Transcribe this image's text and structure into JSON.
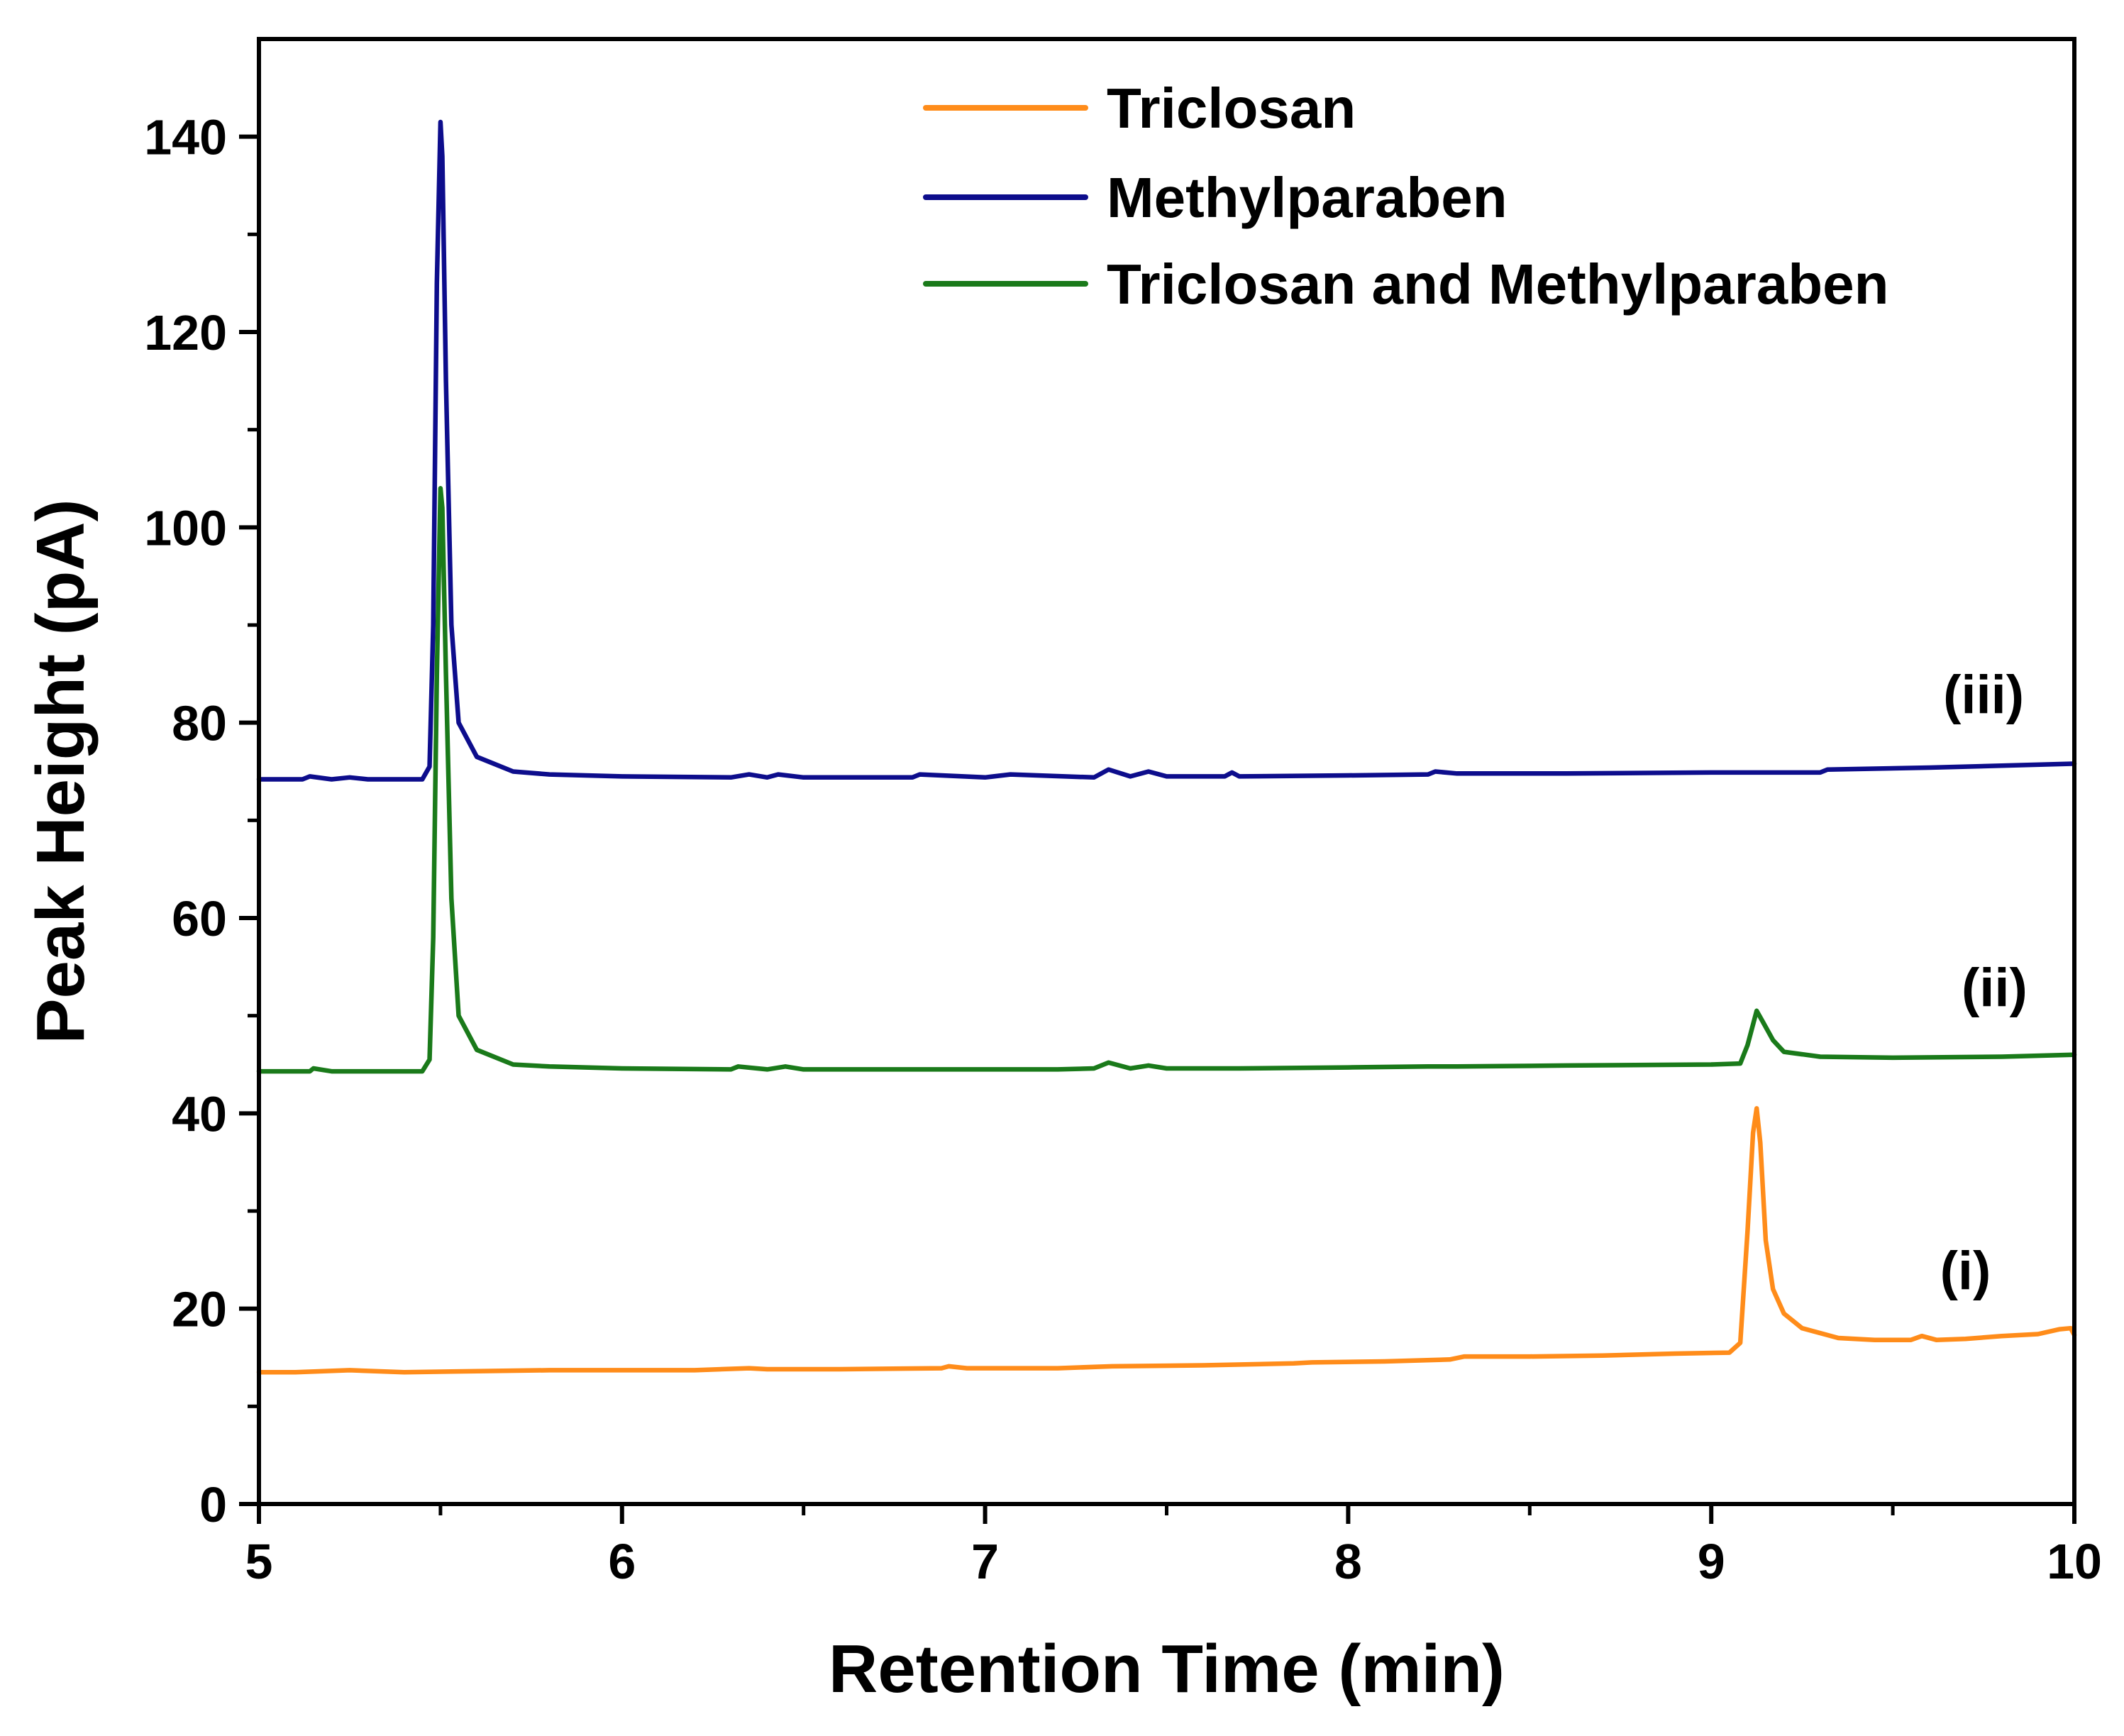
{
  "chart_data": {
    "type": "line",
    "title": "",
    "xlabel": "Retention Time (min)",
    "ylabel": "Peak Height (pA)",
    "xlim": [
      5,
      10
    ],
    "ylim": [
      0,
      150
    ],
    "x_ticks": [
      5,
      6,
      7,
      8,
      9,
      10
    ],
    "y_ticks": [
      0,
      20,
      40,
      60,
      80,
      100,
      120,
      140
    ],
    "x_tick_labels": [
      "5",
      "6",
      "7",
      "8",
      "9",
      "10"
    ],
    "y_tick_labels": [
      "0",
      "20",
      "40",
      "60",
      "80",
      "100",
      "120",
      "140"
    ],
    "x_minor_step": 0.5,
    "y_minor_step": 10,
    "grid": false,
    "legend_position": "top-right",
    "series": [
      {
        "name": "Triclosan",
        "color": "#ff8c1a",
        "trace_label": "(i)",
        "trace_label_at": [
          9.7,
          22
        ],
        "points": [
          [
            5.0,
            13.5
          ],
          [
            5.1,
            13.5
          ],
          [
            5.25,
            13.7
          ],
          [
            5.4,
            13.5
          ],
          [
            5.6,
            13.6
          ],
          [
            5.8,
            13.7
          ],
          [
            6.0,
            13.7
          ],
          [
            6.2,
            13.7
          ],
          [
            6.35,
            13.9
          ],
          [
            6.4,
            13.8
          ],
          [
            6.6,
            13.8
          ],
          [
            6.88,
            13.9
          ],
          [
            6.9,
            14.1
          ],
          [
            6.95,
            13.9
          ],
          [
            7.2,
            13.9
          ],
          [
            7.35,
            14.1
          ],
          [
            7.6,
            14.2
          ],
          [
            7.85,
            14.4
          ],
          [
            7.9,
            14.5
          ],
          [
            8.1,
            14.6
          ],
          [
            8.28,
            14.8
          ],
          [
            8.32,
            15.1
          ],
          [
            8.5,
            15.1
          ],
          [
            8.7,
            15.2
          ],
          [
            8.9,
            15.4
          ],
          [
            9.05,
            15.5
          ],
          [
            9.08,
            16.5
          ],
          [
            9.1,
            28.0
          ],
          [
            9.115,
            38.0
          ],
          [
            9.125,
            40.5
          ],
          [
            9.135,
            37.0
          ],
          [
            9.15,
            27.0
          ],
          [
            9.17,
            22.0
          ],
          [
            9.2,
            19.5
          ],
          [
            9.25,
            18.0
          ],
          [
            9.35,
            17.0
          ],
          [
            9.45,
            16.8
          ],
          [
            9.55,
            16.8
          ],
          [
            9.58,
            17.2
          ],
          [
            9.62,
            16.8
          ],
          [
            9.7,
            16.9
          ],
          [
            9.8,
            17.2
          ],
          [
            9.9,
            17.4
          ],
          [
            9.96,
            17.9
          ],
          [
            9.99,
            18.0
          ],
          [
            10.0,
            17.3
          ]
        ]
      },
      {
        "name": "Methylparaben",
        "color": "#0d0d8c",
        "trace_label": "(iii)",
        "trace_label_at": [
          9.75,
          81
        ],
        "points": [
          [
            5.0,
            74.2
          ],
          [
            5.12,
            74.2
          ],
          [
            5.14,
            74.5
          ],
          [
            5.2,
            74.2
          ],
          [
            5.25,
            74.4
          ],
          [
            5.3,
            74.2
          ],
          [
            5.45,
            74.2
          ],
          [
            5.47,
            75.5
          ],
          [
            5.48,
            90.0
          ],
          [
            5.49,
            125.0
          ],
          [
            5.5,
            141.5
          ],
          [
            5.505,
            138.0
          ],
          [
            5.515,
            115.0
          ],
          [
            5.53,
            90.0
          ],
          [
            5.55,
            80.0
          ],
          [
            5.6,
            76.5
          ],
          [
            5.7,
            75.0
          ],
          [
            5.8,
            74.7
          ],
          [
            6.0,
            74.5
          ],
          [
            6.3,
            74.4
          ],
          [
            6.35,
            74.7
          ],
          [
            6.4,
            74.4
          ],
          [
            6.43,
            74.7
          ],
          [
            6.5,
            74.4
          ],
          [
            6.8,
            74.4
          ],
          [
            6.82,
            74.7
          ],
          [
            7.0,
            74.4
          ],
          [
            7.07,
            74.7
          ],
          [
            7.3,
            74.4
          ],
          [
            7.34,
            75.2
          ],
          [
            7.4,
            74.5
          ],
          [
            7.45,
            75.0
          ],
          [
            7.5,
            74.5
          ],
          [
            7.66,
            74.5
          ],
          [
            7.68,
            74.9
          ],
          [
            7.7,
            74.5
          ],
          [
            8.0,
            74.6
          ],
          [
            8.22,
            74.7
          ],
          [
            8.24,
            75.0
          ],
          [
            8.3,
            74.8
          ],
          [
            8.6,
            74.8
          ],
          [
            9.0,
            74.9
          ],
          [
            9.3,
            74.9
          ],
          [
            9.32,
            75.2
          ],
          [
            9.6,
            75.4
          ],
          [
            10.0,
            75.8
          ]
        ]
      },
      {
        "name": "Triclosan and Methylparaben",
        "color": "#1a7a1a",
        "trace_label": "(ii)",
        "trace_label_at": [
          9.78,
          51
        ],
        "points": [
          [
            5.0,
            44.3
          ],
          [
            5.14,
            44.3
          ],
          [
            5.15,
            44.6
          ],
          [
            5.2,
            44.3
          ],
          [
            5.45,
            44.3
          ],
          [
            5.47,
            45.5
          ],
          [
            5.48,
            58.0
          ],
          [
            5.49,
            85.0
          ],
          [
            5.5,
            104.0
          ],
          [
            5.505,
            102.0
          ],
          [
            5.515,
            85.0
          ],
          [
            5.53,
            62.0
          ],
          [
            5.55,
            50.0
          ],
          [
            5.6,
            46.5
          ],
          [
            5.7,
            45.0
          ],
          [
            5.8,
            44.8
          ],
          [
            6.0,
            44.6
          ],
          [
            6.3,
            44.5
          ],
          [
            6.32,
            44.8
          ],
          [
            6.4,
            44.5
          ],
          [
            6.45,
            44.8
          ],
          [
            6.5,
            44.5
          ],
          [
            6.8,
            44.5
          ],
          [
            7.0,
            44.5
          ],
          [
            7.2,
            44.5
          ],
          [
            7.3,
            44.6
          ],
          [
            7.34,
            45.2
          ],
          [
            7.4,
            44.6
          ],
          [
            7.45,
            44.9
          ],
          [
            7.5,
            44.6
          ],
          [
            7.7,
            44.6
          ],
          [
            8.0,
            44.7
          ],
          [
            8.22,
            44.8
          ],
          [
            8.3,
            44.8
          ],
          [
            8.6,
            44.9
          ],
          [
            9.0,
            45.0
          ],
          [
            9.08,
            45.1
          ],
          [
            9.1,
            47.0
          ],
          [
            9.125,
            50.5
          ],
          [
            9.14,
            49.5
          ],
          [
            9.17,
            47.5
          ],
          [
            9.2,
            46.3
          ],
          [
            9.3,
            45.8
          ],
          [
            9.5,
            45.7
          ],
          [
            9.8,
            45.8
          ],
          [
            10.0,
            46.0
          ]
        ]
      }
    ]
  }
}
